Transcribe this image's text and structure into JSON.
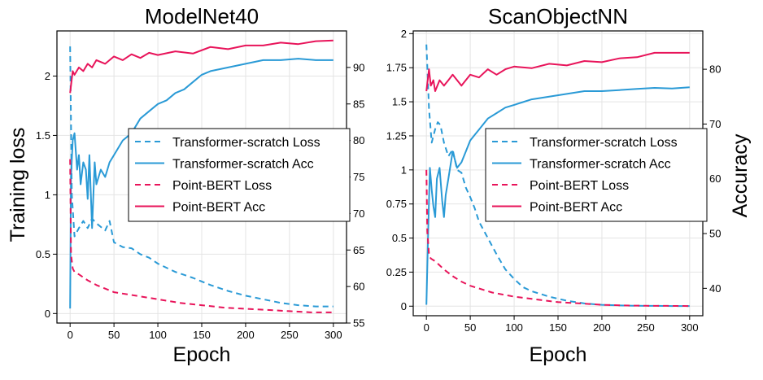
{
  "colors": {
    "transformer": "#2a9ad6",
    "pointbert": "#e8145a",
    "grid": "#e4e4e4",
    "axis": "#000000"
  },
  "shared_labels": {
    "ylabel_left": "Training loss",
    "ylabel_right": "Accuracy",
    "xlabel": "Epoch"
  },
  "chart_data": [
    {
      "type": "line",
      "title": "ModelNet40",
      "xlabel": "Epoch",
      "ylabel": "Training loss",
      "y2label": "Accuracy",
      "xlim": [
        -15,
        315
      ],
      "ylim": [
        -0.08,
        2.38
      ],
      "y2lim": [
        55,
        95
      ],
      "xticks": [
        0,
        50,
        100,
        150,
        200,
        250,
        300
      ],
      "yticks": [
        0,
        0.5,
        1,
        1.5,
        2
      ],
      "ytick_labels": [
        "0",
        "0.5",
        "1",
        "1.5",
        "2"
      ],
      "y2ticks": [
        55,
        60,
        65,
        70,
        75,
        80,
        85,
        90
      ],
      "grid": true,
      "legend_position": "right-center",
      "legend": [
        "Transformer-scratch Loss",
        "Transformer-scratch Acc",
        "Point-BERT Loss",
        "Point-BERT Acc"
      ],
      "series": [
        {
          "name": "Transformer-scratch Loss",
          "axis": "left",
          "style": "dashed",
          "color": "#2a9ad6",
          "x": [
            0,
            2,
            5,
            10,
            15,
            20,
            25,
            30,
            40,
            45,
            50,
            60,
            70,
            80,
            90,
            100,
            120,
            140,
            160,
            180,
            200,
            220,
            240,
            260,
            280,
            300
          ],
          "y": [
            2.25,
            1.0,
            0.65,
            0.72,
            0.78,
            0.72,
            0.8,
            0.76,
            0.7,
            0.78,
            0.6,
            0.56,
            0.55,
            0.5,
            0.47,
            0.42,
            0.35,
            0.3,
            0.24,
            0.19,
            0.15,
            0.12,
            0.09,
            0.07,
            0.06,
            0.06
          ]
        },
        {
          "name": "Transformer-scratch Acc",
          "axis": "right",
          "style": "solid",
          "color": "#2a9ad6",
          "x": [
            0,
            1,
            3,
            5,
            8,
            10,
            12,
            15,
            18,
            20,
            22,
            25,
            28,
            30,
            35,
            40,
            45,
            50,
            55,
            60,
            70,
            80,
            90,
            100,
            110,
            120,
            130,
            140,
            150,
            160,
            180,
            200,
            220,
            240,
            260,
            280,
            300
          ],
          "y": [
            57,
            75,
            80,
            81,
            76,
            78,
            74,
            77,
            76,
            72,
            78,
            68,
            77,
            74,
            76,
            75,
            77,
            78,
            79,
            80,
            81,
            83,
            84,
            85,
            85.5,
            86.5,
            87,
            88,
            89,
            89.5,
            90,
            90.5,
            91,
            91,
            91.2,
            91,
            91
          ]
        },
        {
          "name": "Point-BERT Loss",
          "axis": "left",
          "style": "dashed",
          "color": "#e8145a",
          "x": [
            0,
            1,
            3,
            5,
            10,
            20,
            30,
            40,
            50,
            75,
            100,
            125,
            150,
            175,
            200,
            225,
            250,
            275,
            300
          ],
          "y": [
            1.3,
            0.5,
            0.38,
            0.35,
            0.33,
            0.28,
            0.24,
            0.21,
            0.18,
            0.15,
            0.12,
            0.09,
            0.07,
            0.05,
            0.04,
            0.03,
            0.02,
            0.01,
            0.01
          ]
        },
        {
          "name": "Point-BERT Acc",
          "axis": "right",
          "style": "solid",
          "color": "#e8145a",
          "x": [
            0,
            3,
            5,
            10,
            15,
            20,
            25,
            30,
            40,
            50,
            60,
            70,
            80,
            90,
            100,
            120,
            140,
            160,
            180,
            200,
            220,
            240,
            260,
            280,
            300
          ],
          "y": [
            86.5,
            89.5,
            89,
            90,
            89.5,
            90.5,
            90,
            91,
            90.5,
            91.5,
            91,
            91.8,
            91.3,
            92,
            91.7,
            92.2,
            91.9,
            92.8,
            92.5,
            93,
            93,
            93.4,
            93.2,
            93.6,
            93.7
          ]
        }
      ]
    },
    {
      "type": "line",
      "title": "ScanObjectNN",
      "xlabel": "Epoch",
      "ylabel": "Training loss",
      "y2label": "Accuracy",
      "xlim": [
        -15,
        315
      ],
      "ylim": [
        -0.07,
        2.02
      ],
      "y2lim": [
        35,
        87
      ],
      "xticks": [
        0,
        50,
        100,
        150,
        200,
        250,
        300
      ],
      "yticks": [
        0,
        0.25,
        0.5,
        0.75,
        1,
        1.25,
        1.5,
        1.75,
        2
      ],
      "ytick_labels": [
        "0",
        "0.25",
        "0.5",
        "0.75",
        "1",
        "1.25",
        "1.5",
        "1.75",
        "2"
      ],
      "y2ticks": [
        40,
        50,
        60,
        70,
        80
      ],
      "grid": true,
      "legend_position": "right-center",
      "legend": [
        "Transformer-scratch Loss",
        "Transformer-scratch Acc",
        "Point-BERT Loss",
        "Point-BERT Acc"
      ],
      "series": [
        {
          "name": "Transformer-scratch Loss",
          "axis": "left",
          "style": "dashed",
          "color": "#2a9ad6",
          "x": [
            0,
            3,
            6,
            10,
            13,
            16,
            20,
            25,
            30,
            35,
            40,
            45,
            50,
            55,
            60,
            70,
            80,
            90,
            100,
            110,
            120,
            140,
            160,
            180,
            200,
            220,
            240,
            260,
            280,
            300
          ],
          "y": [
            1.92,
            1.45,
            1.2,
            1.3,
            1.35,
            1.33,
            1.2,
            1.1,
            1.15,
            1.0,
            0.98,
            0.87,
            0.8,
            0.72,
            0.62,
            0.5,
            0.38,
            0.27,
            0.2,
            0.14,
            0.11,
            0.07,
            0.04,
            0.02,
            0.01,
            0.005,
            0.003,
            0.002,
            0.001,
            0.001
          ]
        },
        {
          "name": "Transformer-scratch Acc",
          "axis": "right",
          "style": "solid",
          "color": "#2a9ad6",
          "x": [
            0,
            2,
            4,
            6,
            8,
            10,
            12,
            15,
            18,
            20,
            22,
            25,
            30,
            35,
            40,
            45,
            50,
            55,
            60,
            70,
            80,
            90,
            100,
            110,
            120,
            140,
            160,
            180,
            200,
            220,
            240,
            260,
            280,
            300
          ],
          "y": [
            37,
            50,
            62,
            58,
            55,
            53,
            60,
            62,
            56,
            53,
            57,
            60,
            65,
            62,
            63,
            65,
            67,
            68,
            69,
            71,
            72,
            73,
            73.5,
            74,
            74.5,
            75,
            75.5,
            76,
            76,
            76.2,
            76.4,
            76.6,
            76.5,
            76.7
          ]
        },
        {
          "name": "Point-BERT Loss",
          "axis": "left",
          "style": "dashed",
          "color": "#e8145a",
          "x": [
            0,
            1,
            3,
            5,
            10,
            20,
            30,
            40,
            50,
            75,
            100,
            125,
            150,
            175,
            200,
            225,
            250,
            275,
            300
          ],
          "y": [
            1.0,
            0.55,
            0.38,
            0.35,
            0.33,
            0.27,
            0.22,
            0.18,
            0.15,
            0.1,
            0.07,
            0.05,
            0.03,
            0.02,
            0.01,
            0.005,
            0.003,
            0.002,
            0.001
          ]
        },
        {
          "name": "Point-BERT Acc",
          "axis": "right",
          "style": "solid",
          "color": "#e8145a",
          "x": [
            0,
            3,
            5,
            8,
            10,
            15,
            20,
            25,
            30,
            40,
            50,
            60,
            70,
            80,
            90,
            100,
            120,
            140,
            160,
            180,
            200,
            220,
            240,
            260,
            280,
            300
          ],
          "y": [
            76,
            80,
            77,
            78,
            76,
            78,
            77,
            78,
            79,
            77,
            79,
            78.5,
            80,
            79,
            80,
            80.5,
            80.2,
            81,
            80.7,
            81.5,
            81.3,
            82,
            82.2,
            83,
            83,
            83
          ]
        }
      ]
    }
  ]
}
